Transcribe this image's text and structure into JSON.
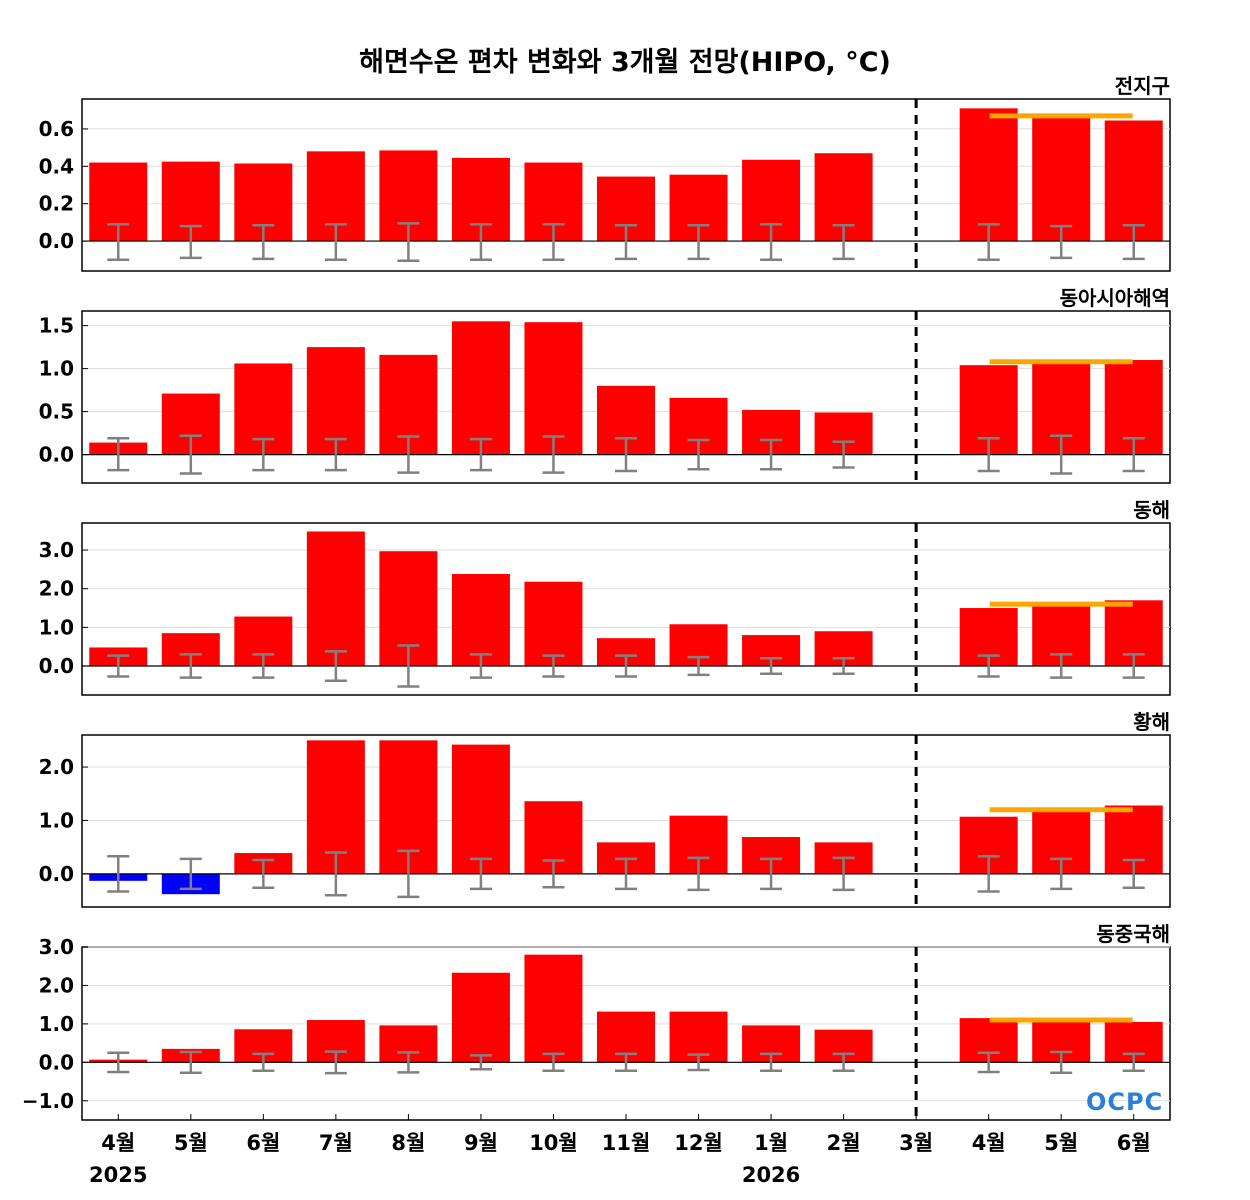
{
  "title": "해면수온 편차 변화와 3개월 전망(HIPO, °C)",
  "logo": "OCPC",
  "colors": {
    "positive": "#ff0000",
    "negative": "#0000ff",
    "forecast_mean": "#ffa500",
    "error_bar": "#808080",
    "divider": "#000000"
  },
  "chart_data": {
    "type": "bar",
    "categories": [
      "4월",
      "5월",
      "6월",
      "7월",
      "8월",
      "9월",
      "10월",
      "11월",
      "12월",
      "1월",
      "2월",
      "3월",
      "4월",
      "5월",
      "6월"
    ],
    "year_labels": [
      {
        "index": 0,
        "label": "2025"
      },
      {
        "index": 9,
        "label": "2026"
      }
    ],
    "forecast_divider_after_index": 11,
    "panels": [
      {
        "name": "전지구",
        "yticks": [
          0.0,
          0.2,
          0.4,
          0.6
        ],
        "tick_labels": [
          "0.0",
          "0.2",
          "0.4",
          "0.6"
        ],
        "ylim": [
          -0.16,
          0.76
        ],
        "values": [
          0.42,
          0.425,
          0.415,
          0.48,
          0.485,
          0.445,
          0.42,
          0.345,
          0.355,
          0.435,
          0.47,
          0.0,
          0.71,
          0.675,
          0.645
        ],
        "error_low": [
          -0.1,
          -0.09,
          -0.095,
          -0.1,
          -0.105,
          -0.1,
          -0.1,
          -0.095,
          -0.095,
          -0.1,
          -0.095,
          null,
          -0.1,
          -0.09,
          -0.095
        ],
        "error_high": [
          0.09,
          0.08,
          0.085,
          0.09,
          0.095,
          0.09,
          0.09,
          0.085,
          0.085,
          0.09,
          0.085,
          null,
          0.09,
          0.08,
          0.085
        ],
        "forecast_mean": 0.67
      },
      {
        "name": "동아시아해역",
        "yticks": [
          0.0,
          0.5,
          1.0,
          1.5
        ],
        "tick_labels": [
          "0.0",
          "0.5",
          "1.0",
          "1.5"
        ],
        "ylim": [
          -0.33,
          1.67
        ],
        "values": [
          0.14,
          0.71,
          1.06,
          1.25,
          1.16,
          1.55,
          1.54,
          0.8,
          0.66,
          0.52,
          0.49,
          0.0,
          1.04,
          1.08,
          1.1
        ],
        "error_low": [
          -0.18,
          -0.22,
          -0.18,
          -0.18,
          -0.21,
          -0.18,
          -0.21,
          -0.19,
          -0.17,
          -0.17,
          -0.15,
          null,
          -0.19,
          -0.22,
          -0.19
        ],
        "error_high": [
          0.19,
          0.22,
          0.18,
          0.18,
          0.21,
          0.18,
          0.21,
          0.19,
          0.17,
          0.17,
          0.15,
          null,
          0.19,
          0.22,
          0.19
        ],
        "forecast_mean": 1.08
      },
      {
        "name": "동해",
        "yticks": [
          0.0,
          1.0,
          2.0,
          3.0
        ],
        "tick_labels": [
          "0.0",
          "1.0",
          "2.0",
          "3.0"
        ],
        "ylim": [
          -0.75,
          3.7
        ],
        "values": [
          0.48,
          0.85,
          1.28,
          3.48,
          2.97,
          2.38,
          2.18,
          0.72,
          1.08,
          0.8,
          0.9,
          0.0,
          1.5,
          1.55,
          1.7
        ],
        "error_low": [
          -0.27,
          -0.3,
          -0.3,
          -0.38,
          -0.53,
          -0.3,
          -0.27,
          -0.27,
          -0.23,
          -0.2,
          -0.2,
          null,
          -0.27,
          -0.3,
          -0.3
        ],
        "error_high": [
          0.27,
          0.3,
          0.3,
          0.38,
          0.53,
          0.3,
          0.27,
          0.27,
          0.23,
          0.2,
          0.2,
          null,
          0.27,
          0.3,
          0.3
        ],
        "forecast_mean": 1.6
      },
      {
        "name": "황해",
        "yticks": [
          0.0,
          1.0,
          2.0
        ],
        "tick_labels": [
          "0.0",
          "1.0",
          "2.0"
        ],
        "ylim": [
          -0.62,
          2.6
        ],
        "values": [
          -0.13,
          -0.38,
          0.39,
          2.5,
          2.5,
          2.42,
          1.36,
          0.59,
          1.09,
          0.69,
          0.59,
          0.0,
          1.07,
          1.2,
          1.28
        ],
        "error_low": [
          -0.33,
          -0.28,
          -0.26,
          -0.4,
          -0.43,
          -0.28,
          -0.25,
          -0.28,
          -0.3,
          -0.28,
          -0.3,
          null,
          -0.33,
          -0.28,
          -0.26
        ],
        "error_high": [
          0.33,
          0.28,
          0.26,
          0.4,
          0.43,
          0.28,
          0.25,
          0.28,
          0.3,
          0.28,
          0.3,
          null,
          0.33,
          0.28,
          0.26
        ],
        "forecast_mean": 1.2
      },
      {
        "name": "동중국해",
        "yticks": [
          -1.0,
          0.0,
          1.0,
          2.0,
          3.0
        ],
        "tick_labels": [
          "−1.0",
          "0.0",
          "1.0",
          "2.0",
          "3.0"
        ],
        "ylim": [
          -1.5,
          3.0
        ],
        "values": [
          0.07,
          0.35,
          0.86,
          1.1,
          0.96,
          2.33,
          2.8,
          1.32,
          1.32,
          0.96,
          0.85,
          0.0,
          1.15,
          1.1,
          1.05
        ],
        "error_low": [
          -0.25,
          -0.27,
          -0.22,
          -0.28,
          -0.26,
          -0.18,
          -0.22,
          -0.22,
          -0.2,
          -0.22,
          -0.22,
          null,
          -0.25,
          -0.27,
          -0.22
        ],
        "error_high": [
          0.25,
          0.27,
          0.22,
          0.28,
          0.26,
          0.18,
          0.22,
          0.22,
          0.2,
          0.22,
          0.22,
          null,
          0.25,
          0.27,
          0.22
        ],
        "forecast_mean": 1.1
      }
    ]
  }
}
